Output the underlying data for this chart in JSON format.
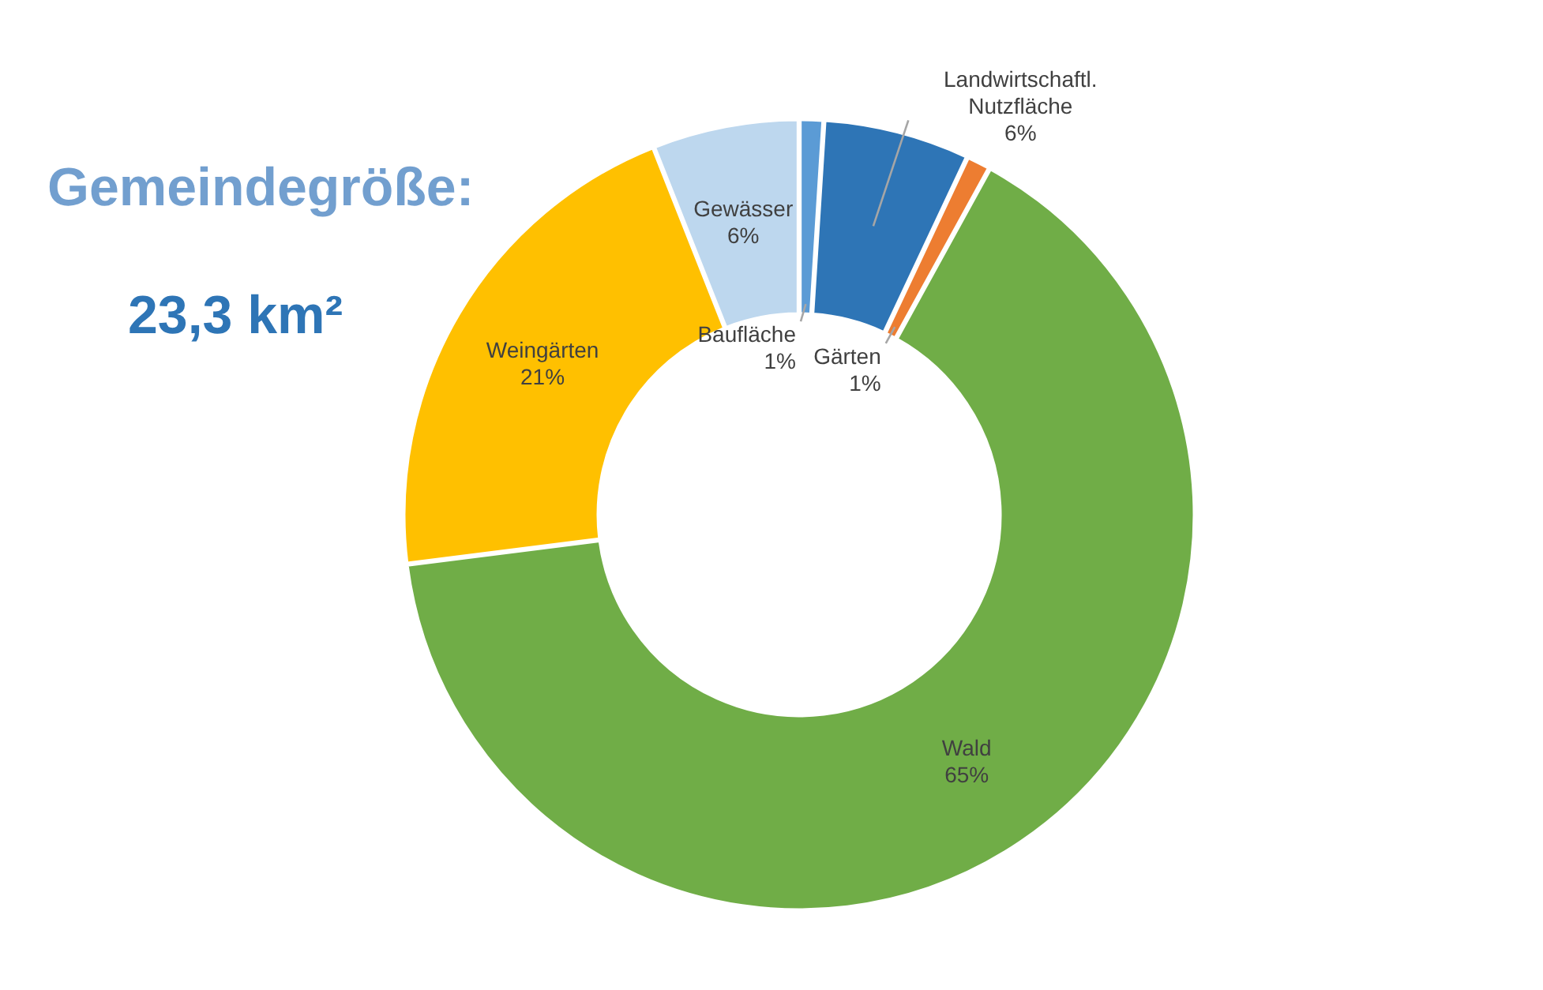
{
  "chart_data": {
    "type": "donut",
    "title": "Gemeindegröße:",
    "subtitle": "23,3 km²",
    "categories": [
      "Baufläche",
      "Landwirtschaftl. Nutzfläche",
      "Gärten",
      "Wald",
      "Weingärten",
      "Gewässer"
    ],
    "values": [
      1,
      6,
      1,
      65,
      21,
      6
    ],
    "value_labels": [
      "1%",
      "6%",
      "1%",
      "65%",
      "21%",
      "6%"
    ],
    "colors": [
      "#5b9bd5",
      "#2e75b6",
      "#ed7d31",
      "#70ad47",
      "#ffc000",
      "#bdd7ee"
    ]
  }
}
